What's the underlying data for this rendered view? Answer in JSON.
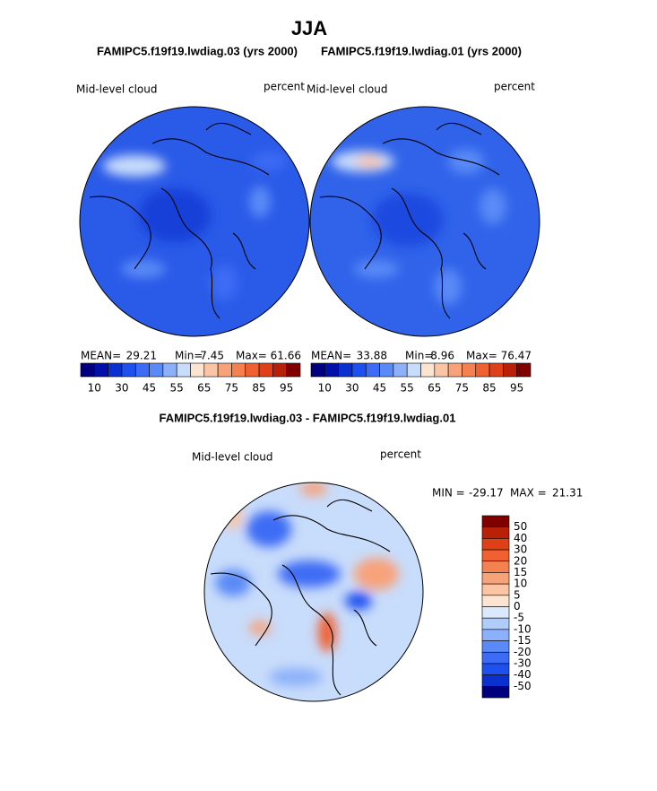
{
  "title": "JJA",
  "panels": [
    {
      "subtitle": "FAMIPC5.f19f19.lwdiag.03 (yrs 2000)",
      "field": "Mid-level cloud",
      "units": "percent",
      "stats": [
        {
          "label": "MEAN=",
          "value": 29.21
        },
        {
          "label": "Min=",
          "value": 7.45
        },
        {
          "label": "Max=",
          "value": 61.66
        }
      ]
    },
    {
      "subtitle": "FAMIPC5.f19f19.lwdiag.01 (yrs 2000)",
      "field": "Mid-level cloud",
      "units": "percent",
      "stats": [
        {
          "label": "MEAN=",
          "value": 33.88
        },
        {
          "label": "Min=",
          "value": 8.96
        },
        {
          "label": "Max=",
          "value": 76.47
        }
      ]
    }
  ],
  "colorbar": {
    "colors": [
      "#00007f",
      "#0010a8",
      "#0a30d0",
      "#1e50f0",
      "#3c6cf5",
      "#5a8af7",
      "#8cb0f9",
      "#c8dcfb",
      "#fde4d0",
      "#fbc4a4",
      "#f8a27a",
      "#f58050",
      "#f06030",
      "#e04018",
      "#b82008",
      "#800000"
    ],
    "labels": [
      10,
      30,
      45,
      55,
      65,
      75,
      85,
      95
    ]
  },
  "difference": {
    "title": "FAMIPC5.f19f19.lwdiag.03 - FAMIPC5.f19f19.lwdiag.01",
    "field": "Mid-level cloud",
    "units": "percent",
    "min_label": "MIN =",
    "min": -29.17,
    "max_label": "MAX =",
    "max": 21.31,
    "colorbar": {
      "colors": [
        "#800000",
        "#b82008",
        "#e04018",
        "#f06030",
        "#f58050",
        "#f8a27a",
        "#fbc4a4",
        "#fde4d0",
        "#dce8fb",
        "#b0ccf9",
        "#8cb0f9",
        "#5a8af7",
        "#3c6cf5",
        "#1e50f0",
        "#0a30d0",
        "#00007f"
      ],
      "labels": [
        50,
        40,
        30,
        20,
        15,
        10,
        5,
        0,
        -5,
        -10,
        -15,
        -20,
        -30,
        -40,
        -50
      ]
    }
  }
}
